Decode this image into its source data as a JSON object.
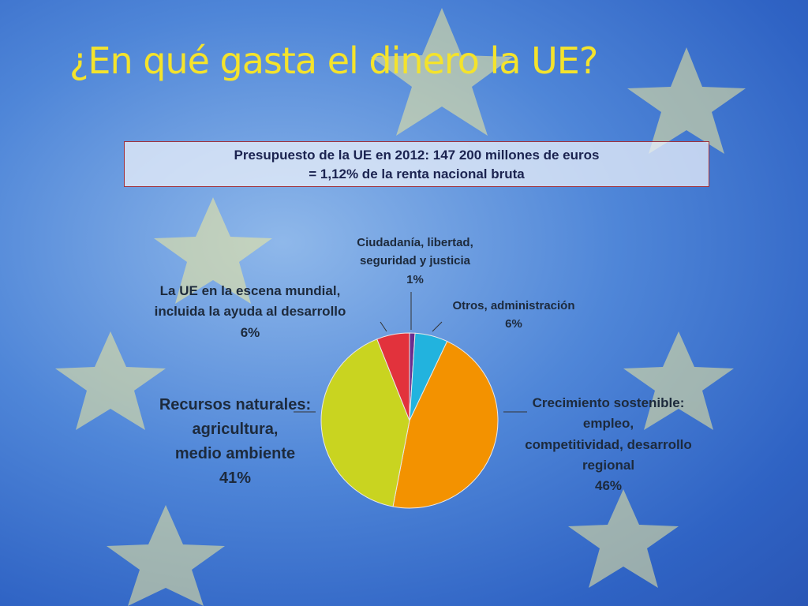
{
  "chart_data": {
    "type": "pie",
    "title": "¿En qué gasta el dinero la UE?",
    "subtitle": [
      "Presupuesto de la UE en 2012: 147 200 millones de euros",
      "= 1,12% de la renta nacional bruta"
    ],
    "categories": [
      "Ciudadanía, libertad,\nseguridad y justicia",
      "Otros, administración",
      "Crecimiento sostenible: empleo,\ncompetitividad, desarrollo\nregional",
      "Recursos naturales:\nagricultura,\nmedio ambiente",
      "La UE en la escena mundial,\nincluida la ayuda al desarrollo"
    ],
    "values": [
      1,
      6,
      46,
      41,
      6
    ],
    "value_labels": [
      "1%",
      "6%",
      "46%",
      "41%",
      "6%"
    ],
    "colors": [
      "#6a2c8e",
      "#22b3de",
      "#f39200",
      "#c9d420",
      "#e2323c"
    ]
  }
}
